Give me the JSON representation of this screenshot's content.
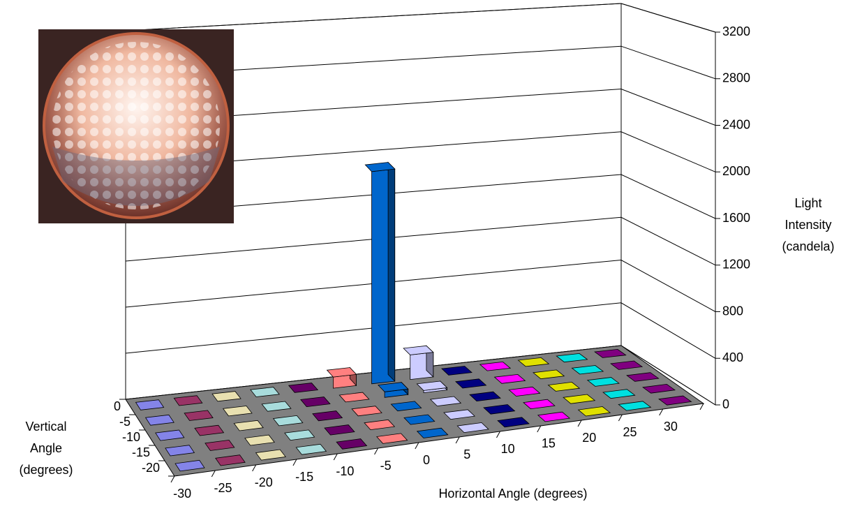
{
  "chart_data": {
    "type": "bar3d",
    "x_label": "Horizontal Angle (degrees)",
    "depth_label": [
      "Vertical",
      "Angle",
      "(degrees)"
    ],
    "z_label": [
      "Light",
      "Intensity",
      "(candela)"
    ],
    "categories": [
      -30,
      -25,
      -20,
      -15,
      -10,
      -5,
      0,
      5,
      10,
      15,
      20,
      25,
      30
    ],
    "depth_categories": [
      0,
      -5,
      -10,
      -15,
      -20
    ],
    "colors": [
      "#8484e8",
      "#993366",
      "#e8e0b0",
      "#a8dcdc",
      "#660066",
      "#ff8080",
      "#0066cc",
      "#ccccff",
      "#000080",
      "#ff00ff",
      "#e0e000",
      "#00e0e0",
      "#800080"
    ],
    "values": [
      [
        0,
        0,
        0,
        0,
        0,
        100,
        1900,
        220,
        0,
        0,
        0,
        0,
        0
      ],
      [
        0,
        0,
        0,
        0,
        0,
        0,
        50,
        20,
        0,
        0,
        0,
        0,
        0
      ],
      [
        0,
        0,
        0,
        0,
        0,
        0,
        0,
        0,
        0,
        0,
        0,
        0,
        0
      ],
      [
        0,
        0,
        0,
        0,
        0,
        0,
        0,
        0,
        0,
        0,
        0,
        0,
        0
      ],
      [
        0,
        0,
        0,
        0,
        0,
        0,
        0,
        0,
        0,
        0,
        0,
        0,
        0
      ]
    ],
    "zlim": [
      0,
      3200
    ],
    "zticks": [
      0,
      400,
      800,
      1200,
      1600,
      2000,
      2400,
      2800,
      3200
    ],
    "grid": true
  }
}
